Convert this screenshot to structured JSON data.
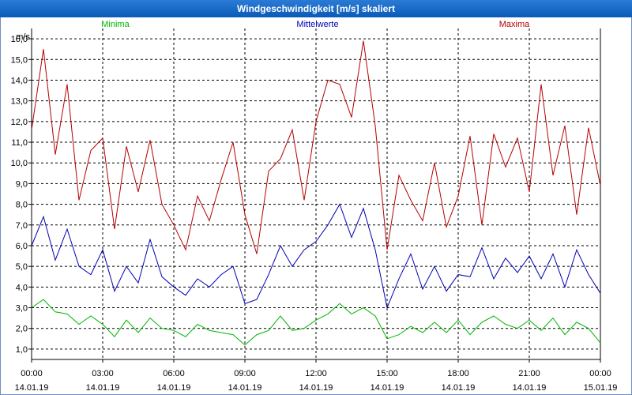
{
  "window": {
    "title": "Windgeschwindigkeit [m/s] skaliert"
  },
  "chart_data": {
    "type": "line",
    "title": "Windgeschwindigkeit [m/s] skaliert",
    "ylabel": "m/s",
    "xlabel": "",
    "ylim": [
      0.5,
      16.5
    ],
    "xlim": [
      0,
      24
    ],
    "yticks": [
      1,
      2,
      3,
      4,
      5,
      6,
      7,
      8,
      9,
      10,
      11,
      12,
      13,
      14,
      15,
      16
    ],
    "ytick_labels": [
      "1,0",
      "2,0",
      "3,0",
      "4,0",
      "5,0",
      "6,0",
      "7,0",
      "8,0",
      "9,0",
      "10,0",
      "11,0",
      "12,0",
      "13,0",
      "14,0",
      "15,0",
      "16,0"
    ],
    "xticks": [
      {
        "time": "00:00",
        "date": "14.01.19"
      },
      {
        "time": "03:00",
        "date": "14.01.19"
      },
      {
        "time": "06:00",
        "date": "14.01.19"
      },
      {
        "time": "09:00",
        "date": "14.01.19"
      },
      {
        "time": "12:00",
        "date": "14.01.19"
      },
      {
        "time": "15:00",
        "date": "14.01.19"
      },
      {
        "time": "18:00",
        "date": "14.01.19"
      },
      {
        "time": "21:00",
        "date": "14.01.19"
      },
      {
        "time": "00:00",
        "date": "15.01.19"
      }
    ],
    "grid": true,
    "series": [
      {
        "name": "Minima",
        "color": "#00b400",
        "x": [
          0,
          0.5,
          1,
          1.5,
          2,
          2.5,
          3,
          3.5,
          4,
          4.5,
          5,
          5.5,
          6,
          6.5,
          7,
          7.5,
          8,
          8.5,
          9,
          9.5,
          10,
          10.5,
          11,
          11.5,
          12,
          12.5,
          13,
          13.5,
          14,
          14.5,
          15,
          15.5,
          16,
          16.5,
          17,
          17.5,
          18,
          18.5,
          19,
          19.5,
          20,
          20.5,
          21,
          21.5,
          22,
          22.5,
          23,
          23.5,
          24
        ],
        "values": [
          3.0,
          3.4,
          2.8,
          2.7,
          2.2,
          2.6,
          2.2,
          1.6,
          2.4,
          1.8,
          2.5,
          2.0,
          1.9,
          1.6,
          2.2,
          1.9,
          1.8,
          1.7,
          1.2,
          1.7,
          1.9,
          2.6,
          1.9,
          2.0,
          2.4,
          2.7,
          3.2,
          2.7,
          3.0,
          2.6,
          1.5,
          1.7,
          2.1,
          1.8,
          2.3,
          1.8,
          2.4,
          1.7,
          2.3,
          2.6,
          2.2,
          2.0,
          2.4,
          1.9,
          2.5,
          1.7,
          2.3,
          2.0,
          1.3
        ]
      },
      {
        "name": "Mittelwerte",
        "color": "#0000b4",
        "x": [
          0,
          0.5,
          1,
          1.5,
          2,
          2.5,
          3,
          3.5,
          4,
          4.5,
          5,
          5.5,
          6,
          6.5,
          7,
          7.5,
          8,
          8.5,
          9,
          9.5,
          10,
          10.5,
          11,
          11.5,
          12,
          12.5,
          13,
          13.5,
          14,
          14.5,
          15,
          15.5,
          16,
          16.5,
          17,
          17.5,
          18,
          18.5,
          19,
          19.5,
          20,
          20.5,
          21,
          21.5,
          22,
          22.5,
          23,
          23.5,
          24
        ],
        "values": [
          6.0,
          7.4,
          5.3,
          6.8,
          5.0,
          4.6,
          5.8,
          3.8,
          5.0,
          4.2,
          6.3,
          4.5,
          4.0,
          3.6,
          4.4,
          4.0,
          4.6,
          5.0,
          3.2,
          3.4,
          4.6,
          6.0,
          5.0,
          5.8,
          6.2,
          7.0,
          8.0,
          6.4,
          7.8,
          5.8,
          3.0,
          4.4,
          5.6,
          3.9,
          5.0,
          3.8,
          4.6,
          4.5,
          5.9,
          4.4,
          5.4,
          4.7,
          5.5,
          4.4,
          5.6,
          4.0,
          5.8,
          4.6,
          3.7
        ]
      },
      {
        "name": "Maxima",
        "color": "#b40000",
        "x": [
          0,
          0.5,
          1,
          1.5,
          2,
          2.5,
          3,
          3.5,
          4,
          4.5,
          5,
          5.5,
          6,
          6.5,
          7,
          7.5,
          8,
          8.5,
          9,
          9.5,
          10,
          10.5,
          11,
          11.5,
          12,
          12.5,
          13,
          13.5,
          14,
          14.5,
          15,
          15.5,
          16,
          16.5,
          17,
          17.5,
          18,
          18.5,
          19,
          19.5,
          20,
          20.5,
          21,
          21.5,
          22,
          22.5,
          23,
          23.5,
          24
        ],
        "values": [
          11.6,
          15.5,
          10.4,
          13.8,
          8.2,
          10.6,
          11.2,
          6.8,
          10.8,
          8.6,
          11.1,
          8.0,
          7.0,
          5.8,
          8.4,
          7.2,
          9.2,
          11.0,
          7.5,
          5.6,
          9.6,
          10.2,
          11.6,
          8.2,
          12.0,
          14.0,
          13.8,
          12.2,
          15.9,
          11.8,
          5.8,
          9.4,
          8.2,
          7.2,
          10.0,
          6.9,
          8.4,
          11.3,
          7.0,
          11.4,
          9.8,
          11.2,
          8.6,
          13.8,
          9.4,
          11.8,
          7.5,
          11.7,
          8.9
        ]
      }
    ]
  }
}
